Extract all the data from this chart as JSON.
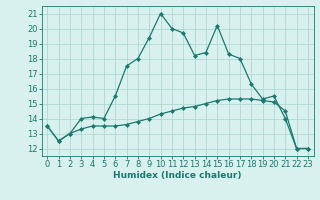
{
  "title": "",
  "xlabel": "Humidex (Indice chaleur)",
  "xlim": [
    -0.5,
    23.5
  ],
  "ylim": [
    11.5,
    21.5
  ],
  "yticks": [
    12,
    13,
    14,
    15,
    16,
    17,
    18,
    19,
    20,
    21
  ],
  "xticks": [
    0,
    1,
    2,
    3,
    4,
    5,
    6,
    7,
    8,
    9,
    10,
    11,
    12,
    13,
    14,
    15,
    16,
    17,
    18,
    19,
    20,
    21,
    22,
    23
  ],
  "line1_x": [
    0,
    1,
    2,
    3,
    4,
    5,
    6,
    7,
    8,
    9,
    10,
    11,
    12,
    13,
    14,
    15,
    16,
    17,
    18,
    19,
    20,
    21,
    22,
    23
  ],
  "line1_y": [
    13.5,
    12.5,
    13.0,
    14.0,
    14.1,
    14.0,
    15.5,
    17.5,
    18.0,
    19.4,
    21.0,
    20.0,
    19.7,
    18.2,
    18.4,
    20.2,
    18.3,
    18.0,
    16.3,
    15.3,
    15.5,
    14.0,
    12.0,
    12.0
  ],
  "line2_x": [
    0,
    1,
    2,
    3,
    4,
    5,
    6,
    7,
    8,
    9,
    10,
    11,
    12,
    13,
    14,
    15,
    16,
    17,
    18,
    19,
    20,
    21,
    22,
    23
  ],
  "line2_y": [
    13.5,
    12.5,
    13.0,
    13.3,
    13.5,
    13.5,
    13.5,
    13.6,
    13.8,
    14.0,
    14.3,
    14.5,
    14.7,
    14.8,
    15.0,
    15.2,
    15.3,
    15.3,
    15.3,
    15.2,
    15.1,
    14.5,
    12.0,
    12.0
  ],
  "line_color": "#1a7a6e",
  "bg_color": "#d8f0ee",
  "grid_color": "#b0d8d4",
  "label_fontsize": 6.5,
  "tick_fontsize": 6.0
}
